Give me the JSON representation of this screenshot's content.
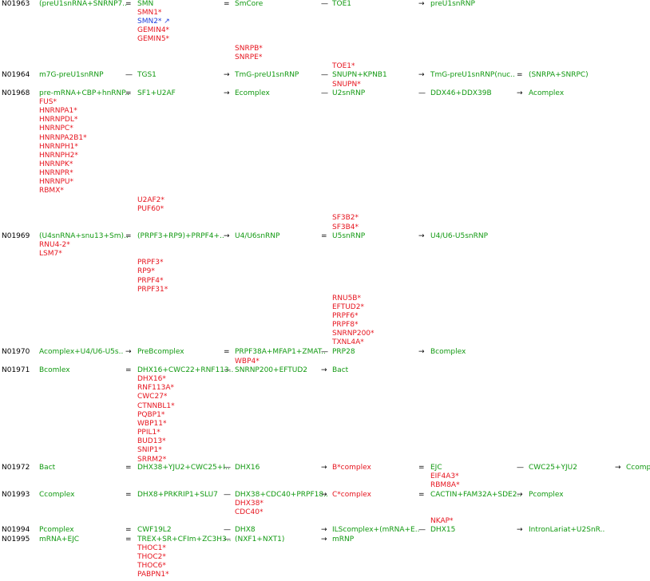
{
  "rows": [
    {
      "id": "N01963",
      "cols": [
        {
          "text": "(preU1snRNA+SNRNP7..",
          "cls": "g"
        },
        {
          "text": "=",
          "cls": "k"
        },
        {
          "text": "SMN",
          "cls": "g"
        },
        {
          "text": "=",
          "cls": "k"
        },
        {
          "text": "SmCore",
          "cls": "g"
        },
        {
          "text": "—",
          "cls": "k"
        },
        {
          "text": "TOE1",
          "cls": "g"
        },
        {
          "text": "→",
          "cls": "k"
        },
        {
          "text": "preU1snRNP",
          "cls": "g"
        }
      ],
      "subs": [
        {
          "text": "SMN1*",
          "cls": "r",
          "col": 2,
          "line": 1
        },
        {
          "text": "SMN2* ↗",
          "cls": "b",
          "col": 2,
          "line": 2
        },
        {
          "text": "GEMIN4*",
          "cls": "r",
          "col": 2,
          "line": 3
        },
        {
          "text": "GEMIN5*",
          "cls": "r",
          "col": 2,
          "line": 4
        },
        {
          "text": "SNRPB*",
          "cls": "r",
          "col": 4,
          "line": 5
        },
        {
          "text": "SNRPE*",
          "cls": "r",
          "col": 4,
          "line": 6
        },
        {
          "text": "TOE1*",
          "cls": "r",
          "col": 6,
          "line": 7
        }
      ]
    },
    {
      "id": "N01964",
      "cols": [
        {
          "text": "m7G-preU1snRNP",
          "cls": "g"
        },
        {
          "text": "—",
          "cls": "k"
        },
        {
          "text": "TGS1",
          "cls": "g"
        },
        {
          "text": "→",
          "cls": "k"
        },
        {
          "text": "TmG-preU1snRNP",
          "cls": "g"
        },
        {
          "text": "—",
          "cls": "k"
        },
        {
          "text": "SNUPN+KPNB1",
          "cls": "g"
        },
        {
          "text": "→",
          "cls": "k"
        },
        {
          "text": "TmG-preU1snRNP(nuc..",
          "cls": "g"
        },
        {
          "text": "=",
          "cls": "k"
        },
        {
          "text": "(SNRPA+SNRPC)",
          "cls": "g"
        }
      ],
      "subs": [
        {
          "text": "SNUPN*",
          "cls": "r",
          "col": 6,
          "line": 1
        }
      ]
    },
    {
      "id": "N01968",
      "cols": [
        {
          "text": "pre-mRNA+CBP+hnRNP..",
          "cls": "g"
        },
        {
          "text": "=",
          "cls": "k"
        },
        {
          "text": "SF1+U2AF",
          "cls": "g"
        },
        {
          "text": "→",
          "cls": "k"
        },
        {
          "text": "Ecomplex",
          "cls": "g"
        },
        {
          "text": "—",
          "cls": "k"
        },
        {
          "text": "U2snRNP",
          "cls": "g"
        },
        {
          "text": "—",
          "cls": "k"
        },
        {
          "text": "DDX46+DDX39B",
          "cls": "g"
        },
        {
          "text": "→",
          "cls": "k"
        },
        {
          "text": "Acomplex",
          "cls": "g"
        }
      ],
      "subs": [
        {
          "text": "FUS*",
          "cls": "r",
          "col": 0,
          "line": 1
        },
        {
          "text": "HNRNPA1*",
          "cls": "r",
          "col": 0,
          "line": 2
        },
        {
          "text": "HNRNPDL*",
          "cls": "r",
          "col": 0,
          "line": 3
        },
        {
          "text": "HNRNPC*",
          "cls": "r",
          "col": 0,
          "line": 4
        },
        {
          "text": "HNRNPA2B1*",
          "cls": "r",
          "col": 0,
          "line": 5
        },
        {
          "text": "HNRNPH1*",
          "cls": "r",
          "col": 0,
          "line": 6
        },
        {
          "text": "HNRNPH2*",
          "cls": "r",
          "col": 0,
          "line": 7
        },
        {
          "text": "HNRNPK*",
          "cls": "r",
          "col": 0,
          "line": 8
        },
        {
          "text": "HNRNPR*",
          "cls": "r",
          "col": 0,
          "line": 9
        },
        {
          "text": "HNRNPU*",
          "cls": "r",
          "col": 0,
          "line": 10
        },
        {
          "text": "RBMX*",
          "cls": "r",
          "col": 0,
          "line": 11
        },
        {
          "text": "U2AF2*",
          "cls": "r",
          "col": 2,
          "line": 12
        },
        {
          "text": "PUF60*",
          "cls": "r",
          "col": 2,
          "line": 13
        },
        {
          "text": "SF3B2*",
          "cls": "r",
          "col": 6,
          "line": 14
        },
        {
          "text": "SF3B4*",
          "cls": "r",
          "col": 6,
          "line": 15
        }
      ]
    },
    {
      "id": "N01969",
      "cols": [
        {
          "text": "(U4snRNA+snu13+Sm)..",
          "cls": "g"
        },
        {
          "text": "=",
          "cls": "k"
        },
        {
          "text": "(PRPF3+RP9)+PRPF4+..",
          "cls": "g"
        },
        {
          "text": "→",
          "cls": "k"
        },
        {
          "text": "U4/U6snRNP",
          "cls": "g"
        },
        {
          "text": "=",
          "cls": "k"
        },
        {
          "text": "U5snRNP",
          "cls": "g"
        },
        {
          "text": "→",
          "cls": "k"
        },
        {
          "text": "U4/U6-U5snRNP",
          "cls": "g"
        }
      ],
      "subs": [
        {
          "text": "RNU4-2*",
          "cls": "r",
          "col": 0,
          "line": 1
        },
        {
          "text": "LSM7*",
          "cls": "r",
          "col": 0,
          "line": 2
        },
        {
          "text": "PRPF3*",
          "cls": "r",
          "col": 2,
          "line": 3
        },
        {
          "text": "RP9*",
          "cls": "r",
          "col": 2,
          "line": 4
        },
        {
          "text": "PRPF4*",
          "cls": "r",
          "col": 2,
          "line": 5
        },
        {
          "text": "PRPF31*",
          "cls": "r",
          "col": 2,
          "line": 6
        },
        {
          "text": "RNU5B*",
          "cls": "r",
          "col": 6,
          "line": 7
        },
        {
          "text": "EFTUD2*",
          "cls": "r",
          "col": 6,
          "line": 8
        },
        {
          "text": "PRPF6*",
          "cls": "r",
          "col": 6,
          "line": 9
        },
        {
          "text": "PRPF8*",
          "cls": "r",
          "col": 6,
          "line": 10
        },
        {
          "text": "SNRNP200*",
          "cls": "r",
          "col": 6,
          "line": 11
        },
        {
          "text": "TXNL4A*",
          "cls": "r",
          "col": 6,
          "line": 12
        }
      ]
    },
    {
      "id": "N01970",
      "cols": [
        {
          "text": "Acomplex+U4/U6-U5s..",
          "cls": "g"
        },
        {
          "text": "→",
          "cls": "k"
        },
        {
          "text": "PreBcomplex",
          "cls": "g"
        },
        {
          "text": "=",
          "cls": "k"
        },
        {
          "text": "PRPF38A+MFAP1+ZMAT..",
          "cls": "g"
        },
        {
          "text": "—",
          "cls": "k"
        },
        {
          "text": "PRP28",
          "cls": "g"
        },
        {
          "text": "→",
          "cls": "k"
        },
        {
          "text": "Bcomplex",
          "cls": "g"
        }
      ],
      "subs": [
        {
          "text": "WBP4*",
          "cls": "r",
          "col": 4,
          "line": 1
        }
      ]
    },
    {
      "id": "N01971",
      "cols": [
        {
          "text": "Bcomlex",
          "cls": "g"
        },
        {
          "text": "=",
          "cls": "k"
        },
        {
          "text": "DHX16+CWC22+RNF113..",
          "cls": "g"
        },
        {
          "text": "—",
          "cls": "k"
        },
        {
          "text": "SNRNP200+EFTUD2",
          "cls": "g"
        },
        {
          "text": "→",
          "cls": "k"
        },
        {
          "text": "Bact",
          "cls": "g"
        }
      ],
      "subs": [
        {
          "text": "DHX16*",
          "cls": "r",
          "col": 2,
          "line": 1
        },
        {
          "text": "RNF113A*",
          "cls": "r",
          "col": 2,
          "line": 2
        },
        {
          "text": "CWC27*",
          "cls": "r",
          "col": 2,
          "line": 3
        },
        {
          "text": "CTNNBL1*",
          "cls": "r",
          "col": 2,
          "line": 4
        },
        {
          "text": "PQBP1*",
          "cls": "r",
          "col": 2,
          "line": 5
        },
        {
          "text": "WBP11*",
          "cls": "r",
          "col": 2,
          "line": 6
        },
        {
          "text": "PPIL1*",
          "cls": "r",
          "col": 2,
          "line": 7
        },
        {
          "text": "BUD13*",
          "cls": "r",
          "col": 2,
          "line": 8
        },
        {
          "text": "SNIP1*",
          "cls": "r",
          "col": 2,
          "line": 9
        },
        {
          "text": "SRRM2*",
          "cls": "r",
          "col": 2,
          "line": 10
        }
      ]
    },
    {
      "id": "N01972",
      "cols": [
        {
          "text": "Bact",
          "cls": "g"
        },
        {
          "text": "=",
          "cls": "k"
        },
        {
          "text": "DHX38+YJU2+CWC25+I..",
          "cls": "g"
        },
        {
          "text": "—",
          "cls": "k"
        },
        {
          "text": "DHX16",
          "cls": "g"
        },
        {
          "text": "→",
          "cls": "k"
        },
        {
          "text": "B*complex",
          "cls": "r"
        },
        {
          "text": "=",
          "cls": "k"
        },
        {
          "text": "EJC",
          "cls": "g"
        },
        {
          "text": "—",
          "cls": "k"
        },
        {
          "text": "CWC25+YJU2",
          "cls": "g"
        },
        {
          "text": "→",
          "cls": "k"
        },
        {
          "text": "Ccompl",
          "cls": "g"
        }
      ],
      "subs": [
        {
          "text": "EIF4A3*",
          "cls": "r",
          "col": 8,
          "line": 1
        },
        {
          "text": "RBM8A*",
          "cls": "r",
          "col": 8,
          "line": 2
        }
      ]
    },
    {
      "id": "N01993",
      "cols": [
        {
          "text": "Ccomplex",
          "cls": "g"
        },
        {
          "text": "=",
          "cls": "k"
        },
        {
          "text": "DHX8+PRKRIP1+SLU7",
          "cls": "g"
        },
        {
          "text": "—",
          "cls": "k"
        },
        {
          "text": "DHX38+CDC40+PRPF18..",
          "cls": "g"
        },
        {
          "text": "→",
          "cls": "k"
        },
        {
          "text": "C*complex",
          "cls": "r"
        },
        {
          "text": "=",
          "cls": "k"
        },
        {
          "text": "CACTIN+FAM32A+SDE2..",
          "cls": "g"
        },
        {
          "text": "→",
          "cls": "k"
        },
        {
          "text": "Pcomplex",
          "cls": "g"
        }
      ],
      "subs": [
        {
          "text": "DHX38*",
          "cls": "r",
          "col": 4,
          "line": 1
        },
        {
          "text": "CDC40*",
          "cls": "r",
          "col": 4,
          "line": 2
        },
        {
          "text": "NKAP*",
          "cls": "r",
          "col": 8,
          "line": 3
        }
      ]
    },
    {
      "id": "N01994",
      "cols": [
        {
          "text": "Pcomplex",
          "cls": "g"
        },
        {
          "text": "=",
          "cls": "k"
        },
        {
          "text": "CWF19L2",
          "cls": "g"
        },
        {
          "text": "—",
          "cls": "k"
        },
        {
          "text": "DHX8",
          "cls": "g"
        },
        {
          "text": "→",
          "cls": "k"
        },
        {
          "text": "ILScomplex+(mRNA+E..",
          "cls": "g"
        },
        {
          "text": "—",
          "cls": "k"
        },
        {
          "text": "DHX15",
          "cls": "g"
        },
        {
          "text": "→",
          "cls": "k"
        },
        {
          "text": "IntronLariat+U2SnR..",
          "cls": "g"
        }
      ],
      "subs": []
    },
    {
      "id": "N01995",
      "cols": [
        {
          "text": "mRNA+EJC",
          "cls": "g"
        },
        {
          "text": "=",
          "cls": "k"
        },
        {
          "text": "TREX+SR+CFIm+ZC3H3..",
          "cls": "g"
        },
        {
          "text": "—",
          "cls": "k"
        },
        {
          "text": "(NXF1+NXT1)",
          "cls": "g"
        },
        {
          "text": "→",
          "cls": "k"
        },
        {
          "text": "mRNP",
          "cls": "g"
        }
      ],
      "subs": [
        {
          "text": "THOC1*",
          "cls": "r",
          "col": 2,
          "line": 1
        },
        {
          "text": "THOC2*",
          "cls": "r",
          "col": 2,
          "line": 2
        },
        {
          "text": "THOC6*",
          "cls": "r",
          "col": 2,
          "line": 3
        },
        {
          "text": "PABPN1*",
          "cls": "r",
          "col": 2,
          "line": 4
        }
      ]
    }
  ]
}
